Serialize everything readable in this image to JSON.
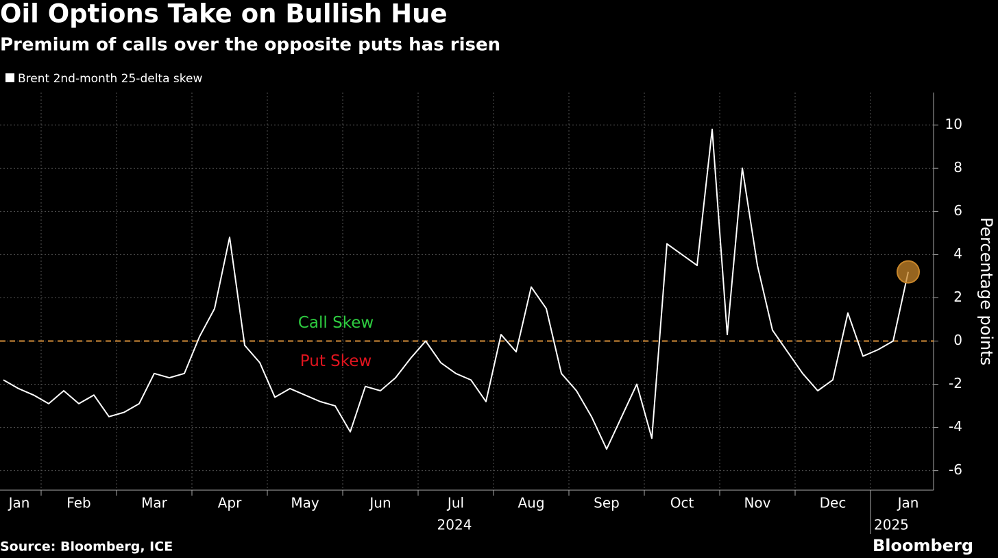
{
  "chart_data": {
    "type": "line",
    "title": "Oil Options Take on Bullish Hue",
    "subtitle": "Premium of calls over the opposite puts has risen",
    "y_label": "Percentage points",
    "source": "Source: Bloomberg, ICE",
    "brand": "Bloomberg",
    "categories": [
      "Jan",
      null,
      null,
      "Feb",
      null,
      null,
      null,
      null,
      "Mar",
      null,
      null,
      null,
      null,
      "Apr",
      null,
      null,
      null,
      null,
      "May",
      null,
      null,
      null,
      null,
      "Jun",
      null,
      null,
      null,
      null,
      "Jul",
      null,
      null,
      null,
      null,
      "Aug",
      null,
      null,
      null,
      null,
      "Sep",
      null,
      null,
      null,
      null,
      "Oct",
      null,
      null,
      null,
      null,
      "Nov",
      null,
      null,
      null,
      null,
      "Dec",
      null,
      null,
      null,
      null,
      "Jan",
      null,
      null
    ],
    "years": [
      "2024",
      "2025"
    ],
    "series": [
      {
        "name": "Brent 2nd-month 25-delta skew",
        "color": "#ffffff",
        "values": [
          -1.8,
          -2.2,
          -2.5,
          -2.9,
          -2.3,
          -2.9,
          -2.5,
          -3.5,
          -3.3,
          -2.9,
          -1.5,
          -1.7,
          -1.5,
          0.2,
          1.5,
          4.8,
          -0.2,
          -1.0,
          -2.6,
          -2.2,
          -2.5,
          -2.8,
          -3.0,
          -4.2,
          -2.1,
          -2.3,
          -1.7,
          -0.8,
          0.0,
          -1.0,
          -1.5,
          -1.8,
          -2.8,
          0.3,
          -0.5,
          2.5,
          1.5,
          -1.5,
          -2.3,
          -3.5,
          -5.0,
          -3.5,
          -2.0,
          -4.5,
          4.5,
          4.0,
          3.5,
          9.8,
          0.3,
          8.0,
          3.5,
          0.5,
          -0.5,
          -1.5,
          -2.3,
          -1.8,
          1.3,
          -0.7,
          -0.4,
          0.0,
          3.2
        ]
      }
    ],
    "annotations": [
      {
        "text": "Call Skew",
        "color": "#2ecc40"
      },
      {
        "text": "Put Skew",
        "color": "#e0141e"
      }
    ],
    "reference_line": {
      "value": 0,
      "color": "#d9913a"
    },
    "highlight_color": "#c8862a",
    "ylim": [
      -6.9,
      11.5
    ],
    "yticks": [
      -6,
      -4,
      -2,
      0,
      2,
      4,
      6,
      8,
      10
    ],
    "grid": true
  }
}
